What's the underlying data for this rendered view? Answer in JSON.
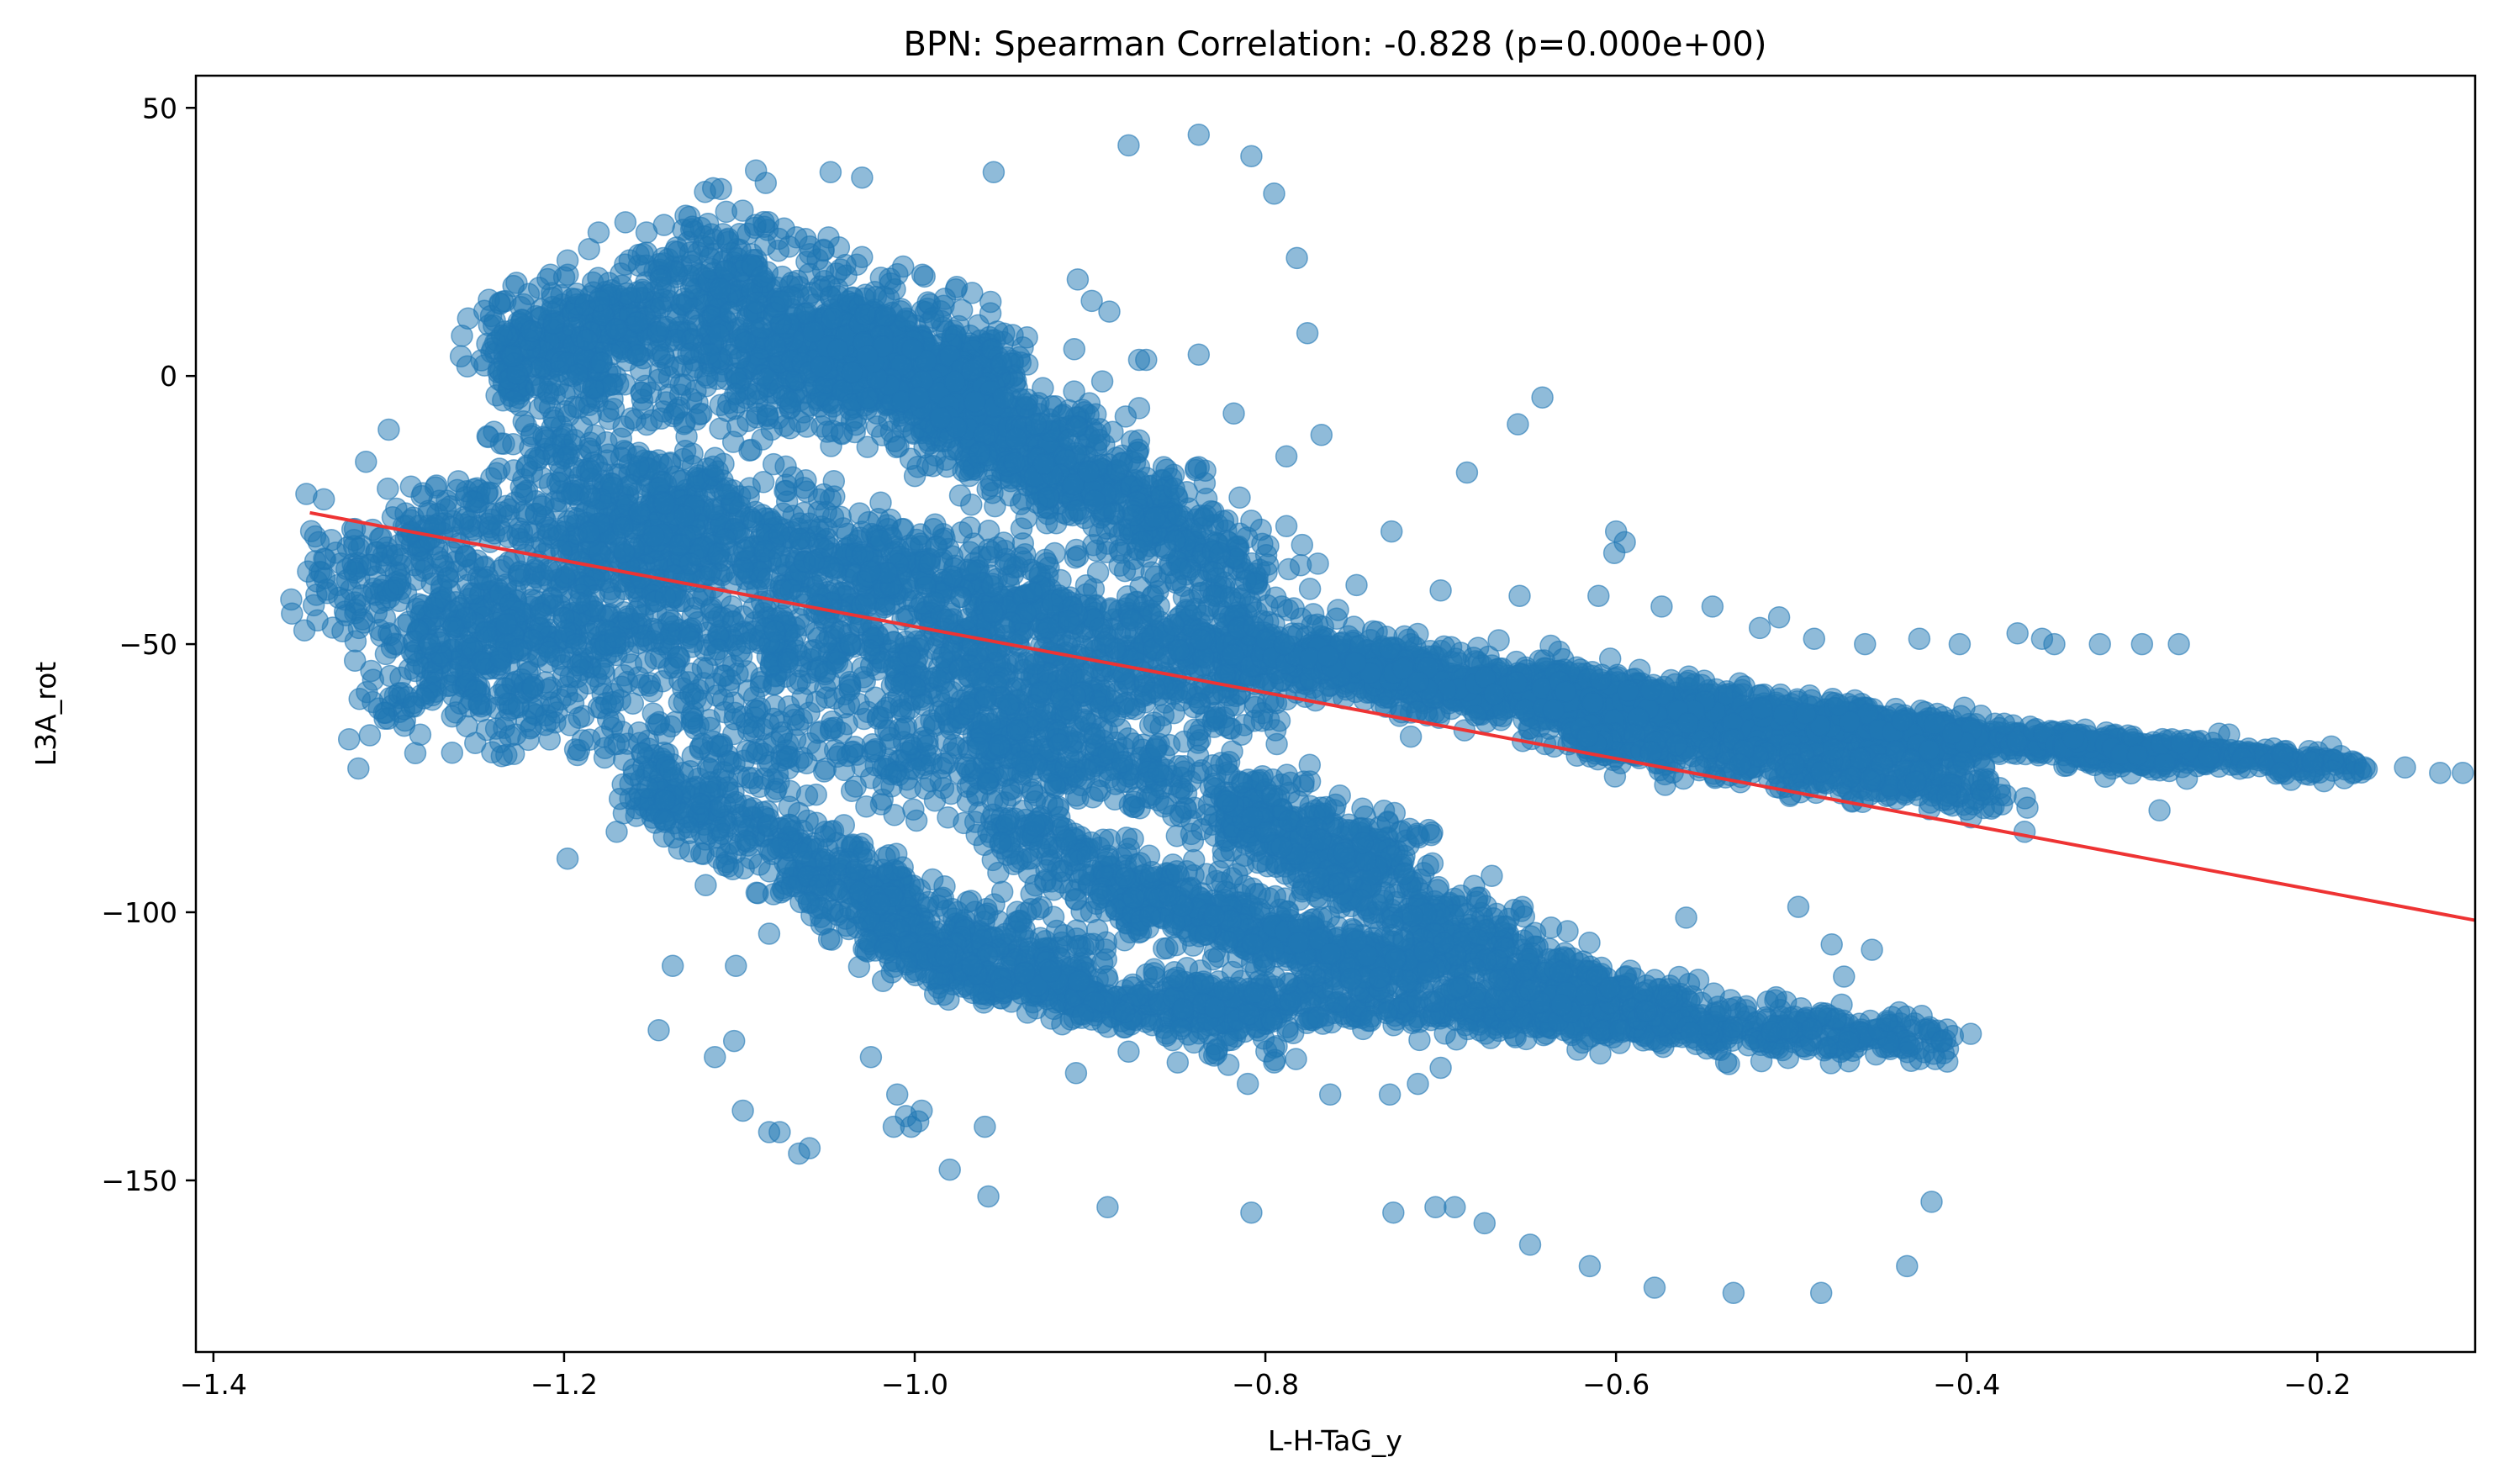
{
  "chart_data": {
    "type": "scatter",
    "title": "BPN: Spearman Correlation: -0.828 (p=0.000e+00)",
    "xlabel": "L-H-TaG_y",
    "ylabel": "L3A_rot",
    "xlim": [
      -1.41,
      -0.11
    ],
    "ylim": [
      -182,
      56
    ],
    "x_ticks": [
      -1.4,
      -1.2,
      -1.0,
      -0.8,
      -0.6,
      -0.4,
      -0.2
    ],
    "x_tick_labels": [
      "−1.4",
      "−1.2",
      "−1.0",
      "−0.8",
      "−0.6",
      "−0.4",
      "−0.2"
    ],
    "y_ticks": [
      50,
      0,
      -50,
      -100,
      -150
    ],
    "y_tick_labels": [
      "50",
      "0",
      "−50",
      "−100",
      "−150"
    ],
    "grid": false,
    "point_color": "#1f77b4",
    "trendline_color": "#ee3333",
    "trendline": {
      "x": [
        -1.345,
        -0.11
      ],
      "y": [
        -25.5,
        -101.5
      ]
    },
    "outliers": [
      {
        "x": -0.838,
        "y": 45
      },
      {
        "x": -0.878,
        "y": 43
      },
      {
        "x": -0.808,
        "y": 41
      },
      {
        "x": -0.795,
        "y": 34
      },
      {
        "x": -0.782,
        "y": 22
      },
      {
        "x": -0.776,
        "y": 8
      },
      {
        "x": -0.955,
        "y": 38
      },
      {
        "x": -1.048,
        "y": 38
      },
      {
        "x": -1.03,
        "y": 37
      },
      {
        "x": -1.085,
        "y": 36
      },
      {
        "x": -1.115,
        "y": 35
      },
      {
        "x": -0.838,
        "y": 4
      },
      {
        "x": -0.642,
        "y": -4
      },
      {
        "x": -0.656,
        "y": -9
      },
      {
        "x": -0.818,
        "y": -7
      },
      {
        "x": -0.788,
        "y": -15
      },
      {
        "x": -0.768,
        "y": -11
      },
      {
        "x": -0.685,
        "y": -18
      },
      {
        "x": -0.728,
        "y": -29
      },
      {
        "x": -0.6,
        "y": -29
      },
      {
        "x": -0.595,
        "y": -31
      },
      {
        "x": -0.601,
        "y": -33
      },
      {
        "x": -0.61,
        "y": -41
      },
      {
        "x": -1.198,
        "y": -90
      },
      {
        "x": -1.17,
        "y": -85
      },
      {
        "x": -1.286,
        "y": -61
      },
      {
        "x": -1.244,
        "y": -66
      },
      {
        "x": -1.218,
        "y": -58
      },
      {
        "x": -1.31,
        "y": -55
      },
      {
        "x": -1.146,
        "y": -122
      },
      {
        "x": -1.114,
        "y": -127
      },
      {
        "x": -1.103,
        "y": -124
      },
      {
        "x": -1.098,
        "y": -137
      },
      {
        "x": -1.083,
        "y": -141
      },
      {
        "x": -1.077,
        "y": -141
      },
      {
        "x": -1.066,
        "y": -145
      },
      {
        "x": -1.06,
        "y": -144
      },
      {
        "x": -1.025,
        "y": -127
      },
      {
        "x": -1.01,
        "y": -134
      },
      {
        "x": -1.005,
        "y": -138
      },
      {
        "x": -1.002,
        "y": -140
      },
      {
        "x": -0.998,
        "y": -139
      },
      {
        "x": -0.996,
        "y": -137
      },
      {
        "x": -1.012,
        "y": -140
      },
      {
        "x": -1.083,
        "y": -104
      },
      {
        "x": -1.102,
        "y": -110
      },
      {
        "x": -1.138,
        "y": -110
      },
      {
        "x": -0.96,
        "y": -140
      },
      {
        "x": -0.98,
        "y": -148
      },
      {
        "x": -0.958,
        "y": -153
      },
      {
        "x": -0.89,
        "y": -155
      },
      {
        "x": -0.908,
        "y": -130
      },
      {
        "x": -0.808,
        "y": -156
      },
      {
        "x": -0.727,
        "y": -156
      },
      {
        "x": -0.703,
        "y": -155
      },
      {
        "x": -0.692,
        "y": -155
      },
      {
        "x": -0.675,
        "y": -158
      },
      {
        "x": -0.649,
        "y": -162
      },
      {
        "x": -0.615,
        "y": -166
      },
      {
        "x": -0.578,
        "y": -170
      },
      {
        "x": -0.533,
        "y": -171
      },
      {
        "x": -0.483,
        "y": -171
      },
      {
        "x": -0.434,
        "y": -166
      },
      {
        "x": -0.42,
        "y": -154
      },
      {
        "x": -0.454,
        "y": -107
      },
      {
        "x": -0.477,
        "y": -106
      },
      {
        "x": -0.47,
        "y": -112
      },
      {
        "x": -0.496,
        "y": -99
      },
      {
        "x": -0.56,
        "y": -101
      },
      {
        "x": -0.598,
        "y": -122
      },
      {
        "x": -0.367,
        "y": -85
      },
      {
        "x": -0.29,
        "y": -81
      },
      {
        "x": -0.279,
        "y": -50
      },
      {
        "x": -0.3,
        "y": -50
      },
      {
        "x": -0.324,
        "y": -50
      },
      {
        "x": -0.35,
        "y": -50
      },
      {
        "x": -0.357,
        "y": -49
      },
      {
        "x": -0.371,
        "y": -48
      },
      {
        "x": -0.404,
        "y": -50
      },
      {
        "x": -0.427,
        "y": -49
      },
      {
        "x": -0.458,
        "y": -50
      },
      {
        "x": -0.487,
        "y": -49
      },
      {
        "x": -0.507,
        "y": -45
      },
      {
        "x": -0.518,
        "y": -47
      },
      {
        "x": -0.545,
        "y": -43
      },
      {
        "x": -0.574,
        "y": -43
      },
      {
        "x": -0.655,
        "y": -41
      },
      {
        "x": -0.7,
        "y": -40
      },
      {
        "x": -0.748,
        "y": -39
      },
      {
        "x": -0.77,
        "y": -35
      },
      {
        "x": -0.788,
        "y": -28
      },
      {
        "x": -0.808,
        "y": -27
      },
      {
        "x": -0.826,
        "y": -33
      },
      {
        "x": -0.852,
        "y": -21
      },
      {
        "x": -0.872,
        "y": -17
      },
      {
        "x": -0.875,
        "y": -26
      },
      {
        "x": -0.838,
        "y": -17
      },
      {
        "x": -0.203,
        "y": -72
      },
      {
        "x": -0.15,
        "y": -73
      },
      {
        "x": -0.13,
        "y": -74
      },
      {
        "x": -0.117,
        "y": -74
      },
      {
        "x": -0.221,
        "y": -74
      },
      {
        "x": -0.173,
        "y": -73
      },
      {
        "x": -0.24,
        "y": -73
      },
      {
        "x": -0.262,
        "y": -71
      },
      {
        "x": -1.34,
        "y": -31
      },
      {
        "x": -1.347,
        "y": -22
      },
      {
        "x": -1.337,
        "y": -23
      },
      {
        "x": -1.3,
        "y": -10
      },
      {
        "x": -1.313,
        "y": -16
      },
      {
        "x": -1.324,
        "y": -36
      },
      {
        "x": -1.317,
        "y": -47
      },
      {
        "x": -1.3,
        "y": -48
      },
      {
        "x": -1.18,
        "y": 14
      },
      {
        "x": -1.153,
        "y": 23
      },
      {
        "x": -1.145,
        "y": 18
      },
      {
        "x": -1.128,
        "y": 23
      },
      {
        "x": -1.12,
        "y": 26
      },
      {
        "x": -0.907,
        "y": 18
      },
      {
        "x": -0.899,
        "y": 14
      },
      {
        "x": -0.889,
        "y": 12
      },
      {
        "x": -0.868,
        "y": 3
      },
      {
        "x": -0.872,
        "y": 3
      },
      {
        "x": -0.893,
        "y": -1
      },
      {
        "x": -0.909,
        "y": 5
      },
      {
        "x": -0.872,
        "y": -6
      },
      {
        "x": -0.872,
        "y": -12
      },
      {
        "x": -0.858,
        "y": -17
      },
      {
        "x": -0.868,
        "y": -19
      },
      {
        "x": -0.899,
        "y": -120
      },
      {
        "x": -0.904,
        "y": -119
      },
      {
        "x": -0.878,
        "y": -126
      },
      {
        "x": -0.85,
        "y": -128
      },
      {
        "x": -0.81,
        "y": -132
      },
      {
        "x": -0.795,
        "y": -128
      },
      {
        "x": -0.763,
        "y": -134
      },
      {
        "x": -0.729,
        "y": -134
      },
      {
        "x": -0.713,
        "y": -132
      },
      {
        "x": -0.7,
        "y": -129
      }
    ],
    "clusters": [
      {
        "x": [
          -1.34,
          -1.22
        ],
        "y": [
          -40,
          -22
        ],
        "n": 220,
        "shape": "band",
        "spread": 10
      },
      {
        "x": [
          -1.3,
          -1.12
        ],
        "y": [
          -58,
          -25
        ],
        "n": 420,
        "shape": "band",
        "spread": 14
      },
      {
        "x": [
          -1.24,
          -1.08
        ],
        "y": [
          2,
          22
        ],
        "n": 380,
        "shape": "band",
        "spread": 12
      },
      {
        "x": [
          -1.24,
          -0.94
        ],
        "y": [
          5,
          0
        ],
        "n": 650,
        "shape": "band",
        "spread": 12
      },
      {
        "x": [
          -1.1,
          -0.95
        ],
        "y": [
          12,
          -5
        ],
        "n": 500,
        "shape": "band",
        "spread": 13
      },
      {
        "x": [
          -1.05,
          -0.84
        ],
        "y": [
          8,
          -30
        ],
        "n": 480,
        "shape": "band",
        "spread": 10
      },
      {
        "x": [
          -0.98,
          -0.8
        ],
        "y": [
          -5,
          -40
        ],
        "n": 420,
        "shape": "band",
        "spread": 9
      },
      {
        "x": [
          -1.22,
          -0.9
        ],
        "y": [
          -15,
          -45
        ],
        "n": 520,
        "shape": "band",
        "spread": 9
      },
      {
        "x": [
          -1.2,
          -0.82
        ],
        "y": [
          -30,
          -52
        ],
        "n": 650,
        "shape": "band",
        "spread": 10
      },
      {
        "x": [
          -1.28,
          -0.8
        ],
        "y": [
          -45,
          -60
        ],
        "n": 820,
        "shape": "band",
        "spread": 9
      },
      {
        "x": [
          -1.25,
          -0.9
        ],
        "y": [
          -62,
          -75
        ],
        "n": 400,
        "shape": "band",
        "spread": 9
      },
      {
        "x": [
          -1.16,
          -1.0
        ],
        "y": [
          -75,
          -100
        ],
        "n": 360,
        "shape": "band",
        "spread": 8
      },
      {
        "x": [
          -1.05,
          -0.9
        ],
        "y": [
          -95,
          -112
        ],
        "n": 300,
        "shape": "band",
        "spread": 7
      },
      {
        "x": [
          -0.95,
          -0.78
        ],
        "y": [
          -85,
          -105
        ],
        "n": 320,
        "shape": "band",
        "spread": 6
      },
      {
        "x": [
          -1.0,
          -0.72
        ],
        "y": [
          -60,
          -90
        ],
        "n": 460,
        "shape": "band",
        "spread": 7
      },
      {
        "x": [
          -0.9,
          -0.7
        ],
        "y": [
          -98,
          -112
        ],
        "n": 260,
        "shape": "band",
        "spread": 5
      },
      {
        "x": [
          -0.82,
          -0.6
        ],
        "y": [
          -82,
          -118
        ],
        "n": 520,
        "shape": "band",
        "spread": 7
      },
      {
        "x": [
          -1.02,
          -0.8
        ],
        "y": [
          -108,
          -122
        ],
        "n": 420,
        "shape": "band",
        "spread": 5
      },
      {
        "x": [
          -0.85,
          -0.42
        ],
        "y": [
          -115,
          -124
        ],
        "n": 700,
        "shape": "band",
        "spread": 4
      },
      {
        "x": [
          -0.8,
          -0.55
        ],
        "y": [
          -105,
          -118
        ],
        "n": 320,
        "shape": "band",
        "spread": 5
      },
      {
        "x": [
          -0.85,
          -0.6
        ],
        "y": [
          -48,
          -64
        ],
        "n": 520,
        "shape": "band",
        "spread": 6
      },
      {
        "x": [
          -0.78,
          -0.5
        ],
        "y": [
          -52,
          -66
        ],
        "n": 620,
        "shape": "band",
        "spread": 5
      },
      {
        "x": [
          -0.65,
          -0.4
        ],
        "y": [
          -58,
          -70
        ],
        "n": 650,
        "shape": "band",
        "spread": 4
      },
      {
        "x": [
          -0.5,
          -0.28
        ],
        "y": [
          -63,
          -72
        ],
        "n": 520,
        "shape": "band",
        "spread": 3
      },
      {
        "x": [
          -0.35,
          -0.18
        ],
        "y": [
          -68,
          -73
        ],
        "n": 300,
        "shape": "band",
        "spread": 2
      },
      {
        "x": [
          -0.62,
          -0.38
        ],
        "y": [
          -68,
          -78
        ],
        "n": 380,
        "shape": "band",
        "spread": 4
      }
    ]
  }
}
